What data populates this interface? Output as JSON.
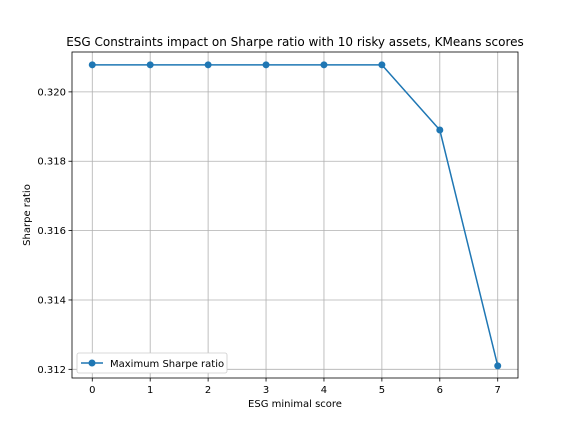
{
  "chart_data": {
    "type": "line",
    "title": "ESG Constraints impact on Sharpe ratio with 10 risky assets, KMeans scores",
    "xlabel": "ESG minimal score",
    "ylabel": "Sharpe ratio",
    "x": [
      0,
      1,
      2,
      3,
      4,
      5,
      6,
      7
    ],
    "series": [
      {
        "name": "Maximum Sharpe ratio",
        "values": [
          0.32078,
          0.32078,
          0.32078,
          0.32078,
          0.32078,
          0.32078,
          0.3189,
          0.3121
        ],
        "color": "#1f77b4"
      }
    ],
    "xlim": [
      -0.35,
      7.35
    ],
    "ylim": [
      0.31175,
      0.32115
    ],
    "xticks": [
      "0",
      "1",
      "2",
      "3",
      "4",
      "5",
      "6",
      "7"
    ],
    "yticks": [
      "0.312",
      "0.314",
      "0.316",
      "0.318",
      "0.320"
    ],
    "grid": true,
    "legend_position": "lower-left"
  }
}
